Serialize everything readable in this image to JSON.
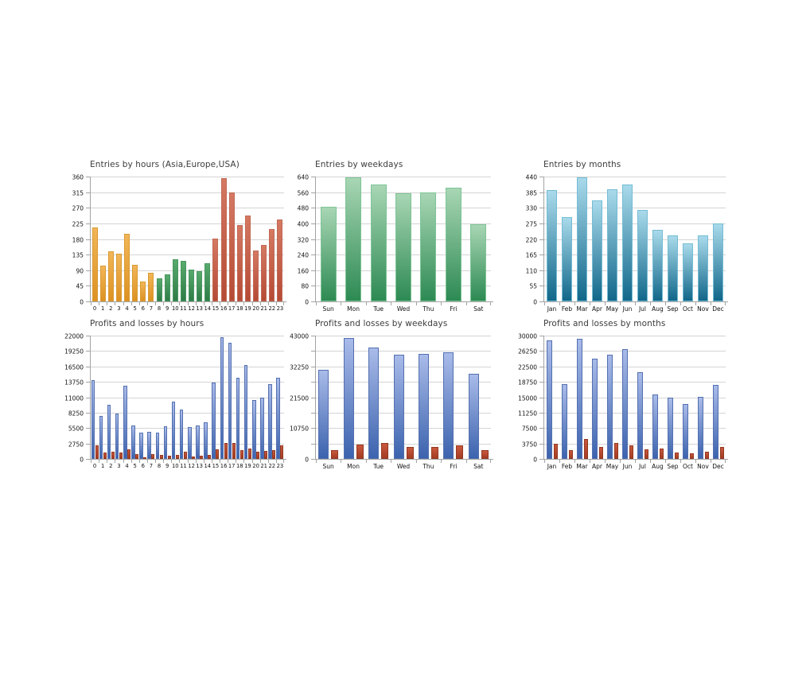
{
  "page": {
    "background_color": "#FFFFFF",
    "grid_color": "#D4D4D4",
    "axis_color": "#A3A3A3",
    "label_color": "#111111",
    "title_color": "#3C3C3C"
  },
  "chart_data": [
    {
      "id": "entries-by-hours",
      "type": "bar",
      "title": "Entries by hours (Asia,Europe,USA)",
      "xlabel": "",
      "ylabel": "",
      "ylim": [
        0,
        360
      ],
      "ytick_step": 45,
      "ylabel_every": 1,
      "grid": true,
      "legend": "none",
      "categories": [
        "0",
        "1",
        "2",
        "3",
        "4",
        "5",
        "6",
        "7",
        "8",
        "9",
        "10",
        "11",
        "12",
        "13",
        "14",
        "15",
        "16",
        "17",
        "18",
        "19",
        "20",
        "21",
        "22",
        "23"
      ],
      "values": [
        213,
        104,
        145,
        138,
        194,
        106,
        58,
        82,
        66,
        78,
        122,
        117,
        91,
        88,
        111,
        182,
        356,
        314,
        221,
        247,
        146,
        163,
        209,
        236
      ],
      "bar_colors": [
        {
          "from": 0,
          "to": 7,
          "top": "#F2B658",
          "bottom": "#DD9222",
          "border": "#D89A33"
        },
        {
          "from": 8,
          "to": 14,
          "top": "#58AA6D",
          "bottom": "#2E7C48",
          "border": "#48985F"
        },
        {
          "from": 15,
          "to": 23,
          "top": "#D57963",
          "bottom": "#B54A35",
          "border": "#C16A55"
        }
      ]
    },
    {
      "id": "entries-by-weekdays",
      "type": "bar",
      "title": "Entries by weekdays",
      "xlabel": "",
      "ylabel": "",
      "ylim": [
        0,
        640
      ],
      "ytick_step": 80,
      "ylabel_every": 1,
      "grid": true,
      "legend": "none",
      "categories": [
        "Sun",
        "Mon",
        "Tue",
        "Wed",
        "Thu",
        "Fri",
        "Sat"
      ],
      "values": [
        487,
        637,
        598,
        556,
        558,
        583,
        397
      ],
      "bar_colors": [
        {
          "from": 0,
          "to": 6,
          "top": "#A8D6B4",
          "bottom": "#2D8A53",
          "border": "#7FC497"
        }
      ]
    },
    {
      "id": "entries-by-months",
      "type": "bar",
      "title": "Entries by months",
      "xlabel": "",
      "ylabel": "",
      "ylim": [
        0,
        440
      ],
      "ytick_step": 55,
      "ylabel_every": 1,
      "grid": true,
      "legend": "none",
      "categories": [
        "Jan",
        "Feb",
        "Mar",
        "Apr",
        "May",
        "Jun",
        "Jul",
        "Aug",
        "Sep",
        "Oct",
        "Nov",
        "Dec"
      ],
      "values": [
        393,
        296,
        438,
        357,
        396,
        412,
        323,
        251,
        233,
        206,
        233,
        275
      ],
      "bar_colors": [
        {
          "from": 0,
          "to": 11,
          "top": "#A9DAEB",
          "bottom": "#11678A",
          "border": "#74BCD4"
        }
      ]
    },
    {
      "id": "profits-and-losses-by-hours",
      "type": "bar",
      "title": "Profits and losses by hours",
      "xlabel": "",
      "ylabel": "",
      "ylim": [
        0,
        22000
      ],
      "ytick_step": 2750,
      "ylabel_every": 1,
      "grid": true,
      "legend": "none",
      "categories": [
        "0",
        "1",
        "2",
        "3",
        "4",
        "5",
        "6",
        "7",
        "8",
        "9",
        "10",
        "11",
        "12",
        "13",
        "14",
        "15",
        "16",
        "17",
        "18",
        "19",
        "20",
        "21",
        "22",
        "23"
      ],
      "series": [
        {
          "name": "profits",
          "top": "#A9BBE9",
          "bottom": "#3C63AE",
          "border": "#5470B0",
          "values": [
            14100,
            7700,
            9700,
            8100,
            13100,
            6000,
            4650,
            4800,
            4650,
            5800,
            10200,
            8800,
            5700,
            5950,
            6500,
            13600,
            21700,
            20700,
            14550,
            16750,
            10550,
            10950,
            13400,
            14450
          ]
        },
        {
          "name": "losses",
          "top": "#C9583C",
          "bottom": "#A33D24",
          "border": "#943822",
          "values": [
            2400,
            1200,
            1300,
            1150,
            1700,
            850,
            300,
            800,
            750,
            620,
            750,
            1250,
            500,
            580,
            750,
            1750,
            2800,
            2900,
            1500,
            1900,
            1300,
            1450,
            1550,
            2400
          ]
        }
      ]
    },
    {
      "id": "profits-and-losses-by-weekdays",
      "type": "bar",
      "title": "Profits and losses by weekdays",
      "xlabel": "",
      "ylabel": "",
      "ylim": [
        0,
        43000
      ],
      "ytick_step": 5375,
      "ylabel_every": 2,
      "grid": true,
      "legend": "none",
      "categories": [
        "Sun",
        "Mon",
        "Tue",
        "Wed",
        "Thu",
        "Fri",
        "Sat"
      ],
      "series": [
        {
          "name": "profits",
          "top": "#A9BBE9",
          "bottom": "#3C63AE",
          "border": "#5470B0",
          "values": [
            31200,
            42200,
            38800,
            36400,
            36500,
            37300,
            29800
          ]
        },
        {
          "name": "losses",
          "top": "#C9583C",
          "bottom": "#A33D24",
          "border": "#943822",
          "values": [
            3100,
            5000,
            5700,
            4100,
            4100,
            4800,
            3000
          ]
        }
      ]
    },
    {
      "id": "profits-and-losses-by-months",
      "type": "bar",
      "title": "Profits and losses by months",
      "xlabel": "",
      "ylabel": "",
      "ylim": [
        0,
        30000
      ],
      "ytick_step": 3750,
      "ylabel_every": 1,
      "grid": true,
      "legend": "none",
      "categories": [
        "Jan",
        "Feb",
        "Mar",
        "Apr",
        "May",
        "Jun",
        "Jul",
        "Aug",
        "Sep",
        "Oct",
        "Nov",
        "Dec"
      ],
      "series": [
        {
          "name": "profits",
          "top": "#A9BBE9",
          "bottom": "#3C63AE",
          "border": "#5470B0",
          "values": [
            28900,
            18300,
            29300,
            24400,
            25400,
            26700,
            21200,
            15600,
            14900,
            13300,
            15100,
            18100
          ]
        },
        {
          "name": "losses",
          "top": "#C9583C",
          "bottom": "#A33D24",
          "border": "#943822",
          "values": [
            3600,
            2100,
            4800,
            2900,
            3800,
            3300,
            2400,
            2500,
            1500,
            1400,
            1800,
            2900
          ]
        }
      ]
    }
  ]
}
